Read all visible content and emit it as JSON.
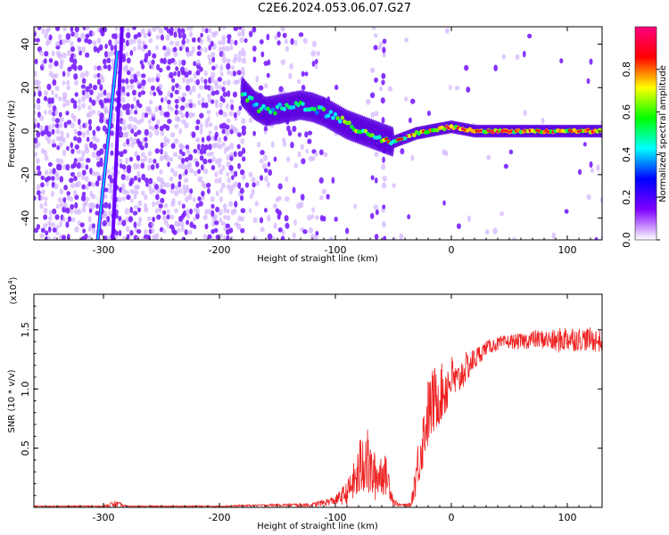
{
  "page_title": "C2E6.2024.053.06.07.G27",
  "chart_data": [
    {
      "type": "heatmap",
      "xlabel": "Height of straight line (km)",
      "ylabel": "Frequency (Hz)",
      "xlim": [
        -360,
        130
      ],
      "ylim": [
        -50,
        48
      ],
      "x_ticks": [
        -300,
        -200,
        -100,
        0,
        100
      ],
      "y_ticks": [
        -40,
        -20,
        0,
        20,
        40
      ],
      "colorbar": {
        "label": "Normalized spectral amplitude",
        "range": [
          0,
          1
        ],
        "ticks": [
          0.0,
          0.2,
          0.4,
          0.6,
          0.8
        ],
        "tick_labels": [
          "0.0",
          "0.2",
          "0.4",
          "0.6",
          "0.8"
        ],
        "colormap": [
          "#ffffff",
          "#8000ff",
          "#0000ff",
          "#00ffff",
          "#00ff00",
          "#ffff00",
          "#ff0000",
          "#ff0080"
        ]
      },
      "traces": [
        {
          "x": [
            -305,
            -288
          ],
          "y": [
            -50,
            37
          ],
          "intensity": 0.3
        },
        {
          "x": [
            -292,
            -284
          ],
          "y": [
            -50,
            48
          ],
          "intensity": 0.1
        }
      ],
      "band_center": {
        "x": [
          -180,
          -170,
          -160,
          -150,
          -140,
          -130,
          -120,
          -110,
          -100,
          -90,
          -80,
          -70,
          -60,
          -50,
          -40,
          -30,
          -20,
          -10,
          0,
          20,
          40,
          60,
          80,
          100,
          130
        ],
        "y": [
          18,
          12,
          9,
          10,
          11,
          12,
          11,
          9,
          6,
          3,
          1,
          -1,
          -3,
          -5,
          -3,
          -1,
          0,
          1,
          2,
          0,
          0,
          0,
          0,
          0,
          0
        ]
      }
    },
    {
      "type": "line",
      "xlabel": "Height of straight line (km)",
      "ylabel": "SNR (10 * v/v)",
      "y_multiplier_label": "(x10",
      "y_multiplier_exp": "4",
      "xlim": [
        -360,
        130
      ],
      "ylim": [
        0,
        1.8
      ],
      "x_ticks": [
        -300,
        -200,
        -100,
        0,
        100
      ],
      "y_ticks": [
        0.5,
        1.0,
        1.5
      ],
      "y_tick_labels": [
        "0.5",
        "1.0",
        "1.5"
      ],
      "color": "#ee2222",
      "series": [
        {
          "x": [
            -360,
            -300,
            -290,
            -280,
            -200,
            -150,
            -120,
            -100,
            -90,
            -85,
            -80,
            -75,
            -70,
            -65,
            -60,
            -55,
            -50,
            -45,
            -40,
            -35,
            -30,
            -25,
            -20,
            -15,
            -10,
            -5,
            0,
            5,
            10,
            15,
            20,
            25,
            30,
            40,
            50,
            60,
            70,
            80,
            90,
            100,
            110,
            120,
            130
          ],
          "y": [
            0.01,
            0.01,
            0.03,
            0.01,
            0.01,
            0.02,
            0.02,
            0.06,
            0.12,
            0.2,
            0.28,
            0.45,
            0.3,
            0.25,
            0.3,
            0.25,
            0.05,
            0.02,
            0.02,
            0.02,
            0.3,
            0.55,
            0.8,
            0.9,
            0.95,
            1.0,
            1.1,
            1.05,
            1.15,
            1.2,
            1.25,
            1.3,
            1.35,
            1.38,
            1.4,
            1.4,
            1.42,
            1.42,
            1.4,
            1.43,
            1.42,
            1.42,
            1.4
          ],
          "amplitude": [
            0.005,
            0.005,
            0.03,
            0.005,
            0.005,
            0.01,
            0.02,
            0.04,
            0.1,
            0.15,
            0.25,
            0.35,
            0.25,
            0.2,
            0.2,
            0.15,
            0.04,
            0.01,
            0.01,
            0.02,
            0.2,
            0.25,
            0.3,
            0.3,
            0.25,
            0.25,
            0.2,
            0.15,
            0.15,
            0.12,
            0.1,
            0.08,
            0.06,
            0.06,
            0.06,
            0.07,
            0.08,
            0.08,
            0.1,
            0.12,
            0.1,
            0.1,
            0.1
          ]
        }
      ]
    }
  ]
}
